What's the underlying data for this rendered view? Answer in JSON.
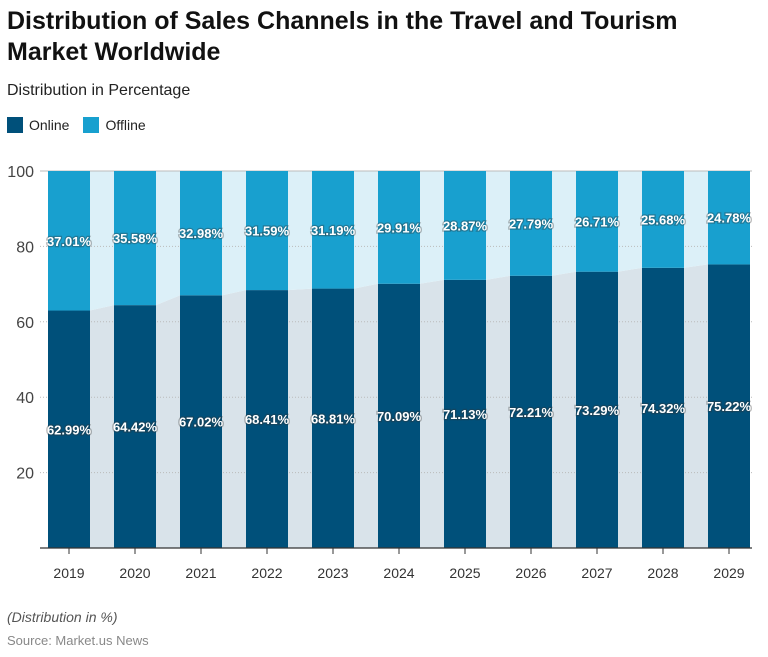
{
  "chart_data": {
    "type": "bar",
    "stacked": true,
    "title": "Distribution of Sales Channels in the Travel and Tourism Market Worldwide",
    "subtitle": "Distribution in Percentage",
    "categories": [
      "2019",
      "2020",
      "2021",
      "2022",
      "2023",
      "2024",
      "2025",
      "2026",
      "2027",
      "2028",
      "2029"
    ],
    "series": [
      {
        "name": "Online",
        "color": "#00507a",
        "values": [
          62.99,
          64.42,
          67.02,
          68.41,
          68.81,
          70.09,
          71.13,
          72.21,
          73.29,
          74.32,
          75.22
        ],
        "labels": [
          "62.99%",
          "64.42%",
          "67.02%",
          "68.41%",
          "68.81%",
          "70.09%",
          "71.13%",
          "72.21%",
          "73.29%",
          "74.32%",
          "75.22%"
        ]
      },
      {
        "name": "Offline",
        "color": "#18a0cf",
        "values": [
          37.01,
          35.58,
          32.98,
          31.59,
          31.19,
          29.91,
          28.87,
          27.79,
          26.71,
          25.68,
          24.78
        ],
        "labels": [
          "37.01%",
          "35.58%",
          "32.98%",
          "31.59%",
          "31.19%",
          "29.91%",
          "28.87%",
          "27.79%",
          "26.71%",
          "25.68%",
          "24.78%"
        ]
      }
    ],
    "ylim": [
      0,
      100
    ],
    "yticks": [
      "20",
      "40",
      "60",
      "80",
      "100"
    ],
    "grid": true,
    "legend": "top-left",
    "xlabel": "",
    "ylabel": ""
  },
  "footer": {
    "note": "(Distribution in %)",
    "source": "Source: Market.us News"
  }
}
